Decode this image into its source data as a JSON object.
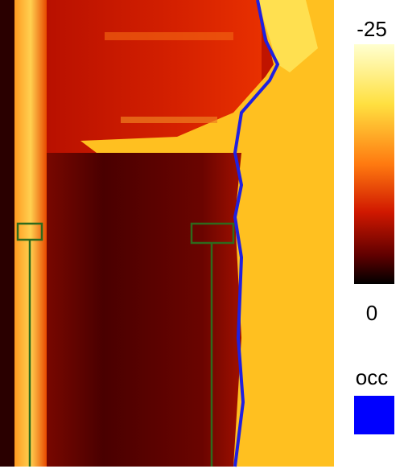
{
  "colorbar": {
    "max_label": "-25",
    "min_label": "0"
  },
  "legend": {
    "label": "occ"
  }
}
